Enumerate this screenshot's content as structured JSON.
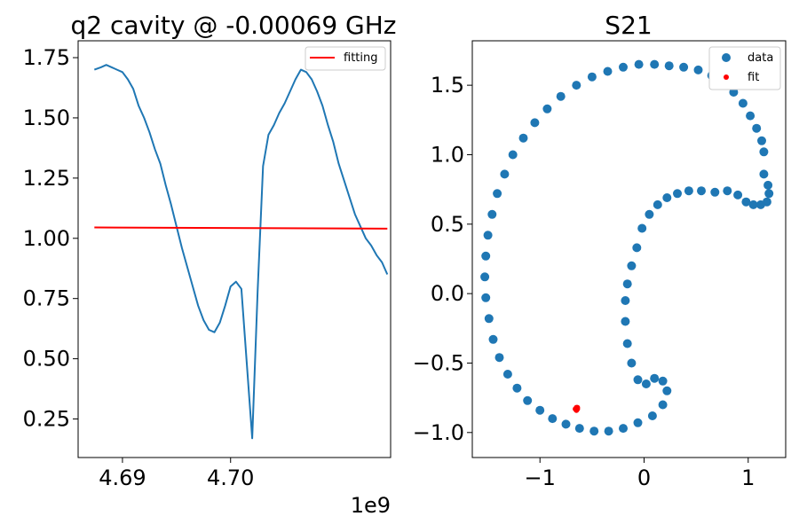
{
  "chart_data": [
    {
      "type": "line",
      "title": "q2 cavity @ -0.00069 GHz",
      "xlabel": "",
      "ylabel": "",
      "x_offset_label": "1e9",
      "xlim": [
        4.6859,
        4.7148
      ],
      "ylim": [
        0.09,
        1.82
      ],
      "xticks": [
        4.69,
        4.7
      ],
      "xtick_labels": [
        "4.69",
        "4.70"
      ],
      "yticks": [
        0.25,
        0.5,
        0.75,
        1.0,
        1.25,
        1.5,
        1.75
      ],
      "ytick_labels": [
        "0.25",
        "0.50",
        "0.75",
        "1.00",
        "1.25",
        "1.50",
        "1.75"
      ],
      "grid": false,
      "legend_position": "upper right",
      "series": [
        {
          "name": "",
          "color": "#1f77b4",
          "x": [
            4.6874,
            4.688,
            4.6885,
            4.689,
            4.6895,
            4.69,
            4.6905,
            4.691,
            4.6915,
            4.692,
            4.6925,
            4.693,
            4.6935,
            4.694,
            4.6945,
            4.695,
            4.6955,
            4.696,
            4.6965,
            4.697,
            4.6975,
            4.698,
            4.6985,
            4.699,
            4.6995,
            4.7,
            4.7005,
            4.701,
            4.7015,
            4.702,
            4.7025,
            4.703,
            4.7035,
            4.704,
            4.7045,
            4.705,
            4.7055,
            4.706,
            4.7065,
            4.707,
            4.7075,
            4.708,
            4.7085,
            4.709,
            4.7095,
            4.71,
            4.7105,
            4.711,
            4.7115,
            4.712,
            4.7125,
            4.713,
            4.7135,
            4.714,
            4.7145
          ],
          "y": [
            1.7,
            1.71,
            1.72,
            1.71,
            1.7,
            1.69,
            1.66,
            1.62,
            1.55,
            1.5,
            1.44,
            1.37,
            1.31,
            1.22,
            1.14,
            1.05,
            0.96,
            0.88,
            0.8,
            0.72,
            0.66,
            0.62,
            0.61,
            0.65,
            0.72,
            0.8,
            0.82,
            0.79,
            0.48,
            0.17,
            0.78,
            1.3,
            1.43,
            1.47,
            1.52,
            1.56,
            1.61,
            1.66,
            1.7,
            1.69,
            1.66,
            1.61,
            1.55,
            1.47,
            1.4,
            1.31,
            1.24,
            1.17,
            1.1,
            1.05,
            1.0,
            0.97,
            0.93,
            0.9,
            0.85
          ]
        },
        {
          "name": "fitting",
          "color": "#ff0000",
          "x": [
            4.6874,
            4.7145
          ],
          "y": [
            1.045,
            1.04
          ]
        }
      ]
    },
    {
      "type": "scatter",
      "title": "S21",
      "xlabel": "",
      "ylabel": "",
      "xlim": [
        -1.65,
        1.36
      ],
      "ylim": [
        -1.18,
        1.82
      ],
      "xticks": [
        -1,
        0,
        1
      ],
      "xtick_labels": [
        "−1",
        "0",
        "1"
      ],
      "yticks": [
        -1.0,
        -0.5,
        0.0,
        0.5,
        1.0,
        1.5
      ],
      "ytick_labels": [
        "−1.0",
        "−0.5",
        "0.0",
        "0.5",
        "1.0",
        "1.5"
      ],
      "grid": false,
      "legend_position": "upper right",
      "series": [
        {
          "name": "data",
          "color": "#1f77b4",
          "x": [
            1.15,
            1.13,
            1.08,
            1.02,
            0.95,
            0.86,
            0.76,
            0.65,
            0.52,
            0.38,
            0.24,
            0.1,
            -0.05,
            -0.2,
            -0.35,
            -0.5,
            -0.65,
            -0.8,
            -0.93,
            -1.05,
            -1.16,
            -1.26,
            -1.34,
            -1.41,
            -1.46,
            -1.5,
            -1.52,
            -1.53,
            -1.52,
            -1.49,
            -1.45,
            -1.39,
            -1.31,
            -1.22,
            -1.12,
            -1.0,
            -0.88,
            -0.75,
            -0.62,
            -0.48,
            -0.34,
            -0.2,
            -0.06,
            0.08,
            0.18,
            0.22,
            0.18,
            0.1,
            0.02,
            -0.06,
            -0.12,
            -0.16,
            -0.18,
            -0.18,
            -0.16,
            -0.12,
            -0.07,
            -0.02,
            0.05,
            0.13,
            0.22,
            0.32,
            0.43,
            0.55,
            0.68,
            0.8,
            0.9,
            0.98,
            1.05,
            1.12,
            1.18,
            1.2,
            1.19,
            1.15
          ],
          "y": [
            1.02,
            1.1,
            1.19,
            1.28,
            1.37,
            1.45,
            1.52,
            1.57,
            1.61,
            1.63,
            1.64,
            1.65,
            1.65,
            1.63,
            1.6,
            1.56,
            1.5,
            1.42,
            1.33,
            1.23,
            1.12,
            1.0,
            0.86,
            0.72,
            0.57,
            0.42,
            0.27,
            0.12,
            -0.03,
            -0.18,
            -0.33,
            -0.46,
            -0.58,
            -0.68,
            -0.77,
            -0.84,
            -0.9,
            -0.94,
            -0.97,
            -0.99,
            -0.99,
            -0.97,
            -0.93,
            -0.88,
            -0.8,
            -0.7,
            -0.63,
            -0.61,
            -0.65,
            -0.62,
            -0.5,
            -0.36,
            -0.2,
            -0.05,
            0.07,
            0.2,
            0.33,
            0.47,
            0.57,
            0.64,
            0.69,
            0.72,
            0.74,
            0.74,
            0.73,
            0.74,
            0.71,
            0.66,
            0.64,
            0.64,
            0.66,
            0.72,
            0.78,
            0.86
          ]
        },
        {
          "name": "fit",
          "color": "#ff0000",
          "x": [
            -0.66,
            -0.65,
            -0.64,
            -0.65,
            -0.64
          ],
          "y": [
            -0.83,
            -0.82,
            -0.83,
            -0.84,
            -0.82
          ]
        }
      ]
    }
  ]
}
